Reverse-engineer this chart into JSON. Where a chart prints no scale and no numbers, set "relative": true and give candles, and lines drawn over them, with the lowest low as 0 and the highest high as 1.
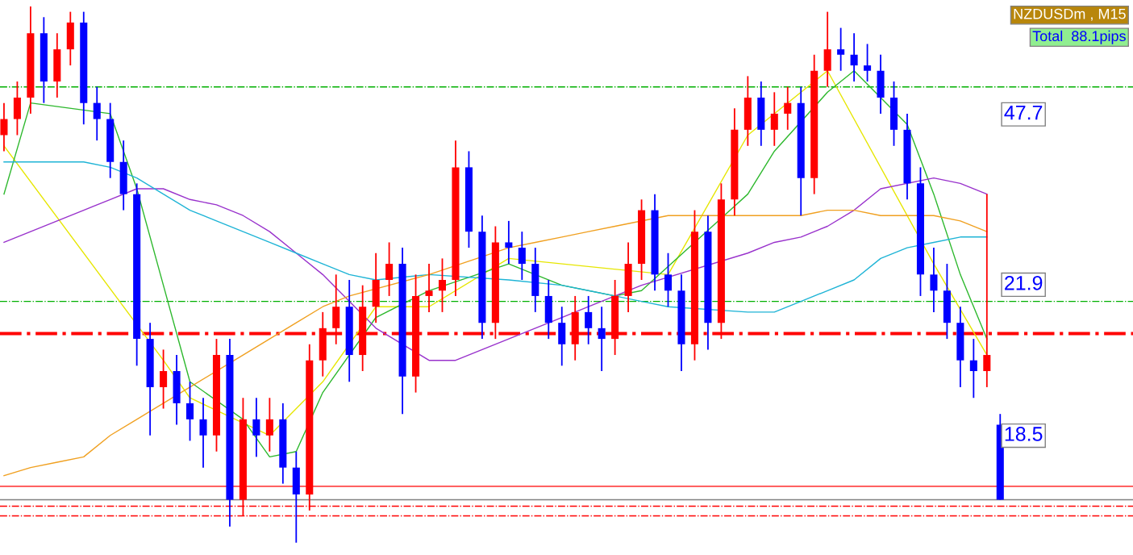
{
  "chart_data": {
    "type": "candlestick",
    "relative": true,
    "legend": false,
    "categories": [
      null,
      null,
      null,
      null,
      null,
      null,
      null,
      null,
      null,
      null,
      null,
      null,
      null,
      null,
      null,
      null,
      null,
      null,
      null,
      null,
      null,
      null,
      null,
      null,
      null,
      null,
      null,
      null,
      null,
      null,
      null,
      null,
      null,
      null,
      null,
      null,
      null,
      null,
      null,
      null,
      null,
      null,
      null,
      null,
      null,
      null,
      null,
      null,
      null,
      null,
      null,
      null,
      null,
      null,
      null,
      null,
      null,
      null,
      null,
      null,
      null,
      null,
      null,
      null,
      null,
      null,
      null,
      null,
      null,
      null,
      null,
      null,
      null,
      null,
      null,
      null
    ],
    "ohlc": [
      [
        0.76,
        0.82,
        0.73,
        0.79
      ],
      [
        0.79,
        0.86,
        0.76,
        0.83
      ],
      [
        0.83,
        1.0,
        0.8,
        0.95
      ],
      [
        0.95,
        0.98,
        0.82,
        0.86
      ],
      [
        0.86,
        0.95,
        0.83,
        0.92
      ],
      [
        0.92,
        0.99,
        0.89,
        0.97
      ],
      [
        0.97,
        0.99,
        0.78,
        0.82
      ],
      [
        0.82,
        0.85,
        0.75,
        0.79
      ],
      [
        0.79,
        0.82,
        0.68,
        0.71
      ],
      [
        0.71,
        0.75,
        0.62,
        0.65
      ],
      [
        0.65,
        0.67,
        0.33,
        0.38
      ],
      [
        0.38,
        0.41,
        0.2,
        0.29
      ],
      [
        0.29,
        0.36,
        0.25,
        0.32
      ],
      [
        0.32,
        0.35,
        0.22,
        0.26
      ],
      [
        0.26,
        0.3,
        0.19,
        0.23
      ],
      [
        0.23,
        0.27,
        0.14,
        0.2
      ],
      [
        0.2,
        0.38,
        0.17,
        0.35
      ],
      [
        0.35,
        0.38,
        0.03,
        0.08
      ],
      [
        0.08,
        0.27,
        0.05,
        0.23
      ],
      [
        0.23,
        0.27,
        0.16,
        0.2
      ],
      [
        0.2,
        0.27,
        0.17,
        0.23
      ],
      [
        0.23,
        0.26,
        0.11,
        0.14
      ],
      [
        0.14,
        0.17,
        0.0,
        0.09
      ],
      [
        0.09,
        0.37,
        0.06,
        0.34
      ],
      [
        0.34,
        0.43,
        0.31,
        0.4
      ],
      [
        0.4,
        0.5,
        0.37,
        0.44
      ],
      [
        0.44,
        0.49,
        0.3,
        0.35
      ],
      [
        0.35,
        0.48,
        0.32,
        0.44
      ],
      [
        0.44,
        0.54,
        0.41,
        0.49
      ],
      [
        0.49,
        0.56,
        0.46,
        0.52
      ],
      [
        0.52,
        0.55,
        0.24,
        0.31
      ],
      [
        0.31,
        0.5,
        0.28,
        0.46
      ],
      [
        0.46,
        0.52,
        0.43,
        0.47
      ],
      [
        0.47,
        0.53,
        0.43,
        0.49
      ],
      [
        0.49,
        0.75,
        0.46,
        0.7
      ],
      [
        0.7,
        0.73,
        0.55,
        0.58
      ],
      [
        0.58,
        0.61,
        0.38,
        0.41
      ],
      [
        0.41,
        0.59,
        0.38,
        0.56
      ],
      [
        0.56,
        0.6,
        0.52,
        0.55
      ],
      [
        0.55,
        0.58,
        0.49,
        0.52
      ],
      [
        0.52,
        0.55,
        0.43,
        0.46
      ],
      [
        0.46,
        0.49,
        0.38,
        0.41
      ],
      [
        0.41,
        0.44,
        0.33,
        0.37
      ],
      [
        0.37,
        0.46,
        0.34,
        0.43
      ],
      [
        0.43,
        0.46,
        0.37,
        0.4
      ],
      [
        0.4,
        0.44,
        0.32,
        0.38
      ],
      [
        0.38,
        0.49,
        0.35,
        0.46
      ],
      [
        0.46,
        0.56,
        0.43,
        0.52
      ],
      [
        0.52,
        0.64,
        0.49,
        0.62
      ],
      [
        0.62,
        0.65,
        0.47,
        0.5
      ],
      [
        0.5,
        0.54,
        0.44,
        0.47
      ],
      [
        0.47,
        0.5,
        0.32,
        0.37
      ],
      [
        0.37,
        0.62,
        0.34,
        0.58
      ],
      [
        0.58,
        0.61,
        0.36,
        0.41
      ],
      [
        0.41,
        0.67,
        0.38,
        0.64
      ],
      [
        0.64,
        0.81,
        0.61,
        0.77
      ],
      [
        0.77,
        0.87,
        0.74,
        0.83
      ],
      [
        0.83,
        0.86,
        0.74,
        0.77
      ],
      [
        0.77,
        0.84,
        0.74,
        0.8
      ],
      [
        0.8,
        0.85,
        0.77,
        0.82
      ],
      [
        0.82,
        0.85,
        0.61,
        0.68
      ],
      [
        0.68,
        0.91,
        0.65,
        0.88
      ],
      [
        0.88,
        0.99,
        0.85,
        0.92
      ],
      [
        0.92,
        0.96,
        0.88,
        0.91
      ],
      [
        0.91,
        0.95,
        0.86,
        0.89
      ],
      [
        0.89,
        0.93,
        0.86,
        0.88
      ],
      [
        0.88,
        0.91,
        0.8,
        0.83
      ],
      [
        0.83,
        0.86,
        0.74,
        0.77
      ],
      [
        0.77,
        0.8,
        0.64,
        0.67
      ],
      [
        0.67,
        0.7,
        0.46,
        0.5
      ],
      [
        0.5,
        0.55,
        0.43,
        0.47
      ],
      [
        0.47,
        0.52,
        0.38,
        0.41
      ],
      [
        0.41,
        0.44,
        0.29,
        0.34
      ],
      [
        0.34,
        0.38,
        0.27,
        0.32
      ],
      [
        0.32,
        0.65,
        0.29,
        0.35
      ],
      [
        0.22,
        0.24,
        0.08,
        0.08
      ]
    ],
    "colors": [
      "#ff0000",
      "#ff0000",
      "#ff0000",
      "#0000ff",
      "#ff0000",
      "#ff0000",
      "#0000ff",
      "#0000ff",
      "#0000ff",
      "#0000ff",
      "#0000ff",
      "#0000ff",
      "#ff0000",
      "#0000ff",
      "#0000ff",
      "#0000ff",
      "#ff0000",
      "#0000ff",
      "#ff0000",
      "#0000ff",
      "#ff0000",
      "#0000ff",
      "#0000ff",
      "#ff0000",
      "#ff0000",
      "#ff0000",
      "#0000ff",
      "#ff0000",
      "#ff0000",
      "#ff0000",
      "#0000ff",
      "#ff0000",
      "#ff0000",
      "#ff0000",
      "#ff0000",
      "#0000ff",
      "#0000ff",
      "#ff0000",
      "#0000ff",
      "#0000ff",
      "#0000ff",
      "#0000ff",
      "#0000ff",
      "#ff0000",
      "#0000ff",
      "#0000ff",
      "#ff0000",
      "#ff0000",
      "#ff0000",
      "#0000ff",
      "#0000ff",
      "#0000ff",
      "#ff0000",
      "#0000ff",
      "#ff0000",
      "#ff0000",
      "#ff0000",
      "#0000ff",
      "#ff0000",
      "#ff0000",
      "#0000ff",
      "#ff0000",
      "#ff0000",
      "#0000ff",
      "#0000ff",
      "#0000ff",
      "#0000ff",
      "#0000ff",
      "#0000ff",
      "#0000ff",
      "#0000ff",
      "#0000ff",
      "#0000ff",
      "#0000ff",
      "#ff0000",
      "#0000ff"
    ],
    "series": [
      {
        "type": "line",
        "color": "#e6e600",
        "values": [
          0.74,
          null,
          null,
          null,
          null,
          null,
          null,
          null,
          null,
          null,
          null,
          null,
          0.34,
          null,
          0.27,
          null,
          null,
          null,
          null,
          null,
          0.2,
          null,
          null,
          null,
          0.3,
          null,
          null,
          null,
          0.44,
          null,
          null,
          null,
          0.44,
          null,
          null,
          null,
          null,
          null,
          0.53,
          null,
          null,
          null,
          null,
          null,
          null,
          null,
          null,
          null,
          null,
          null,
          0.5,
          null,
          null,
          null,
          null,
          null,
          0.76,
          null,
          null,
          null,
          null,
          null,
          0.88,
          null,
          null,
          null,
          null,
          null,
          null,
          null,
          0.52,
          null,
          null,
          null,
          0.35,
          null
        ]
      },
      {
        "type": "line",
        "color": "#2db82d",
        "values": [
          0.65,
          null,
          0.82,
          null,
          null,
          null,
          null,
          null,
          0.8,
          null,
          0.66,
          null,
          0.48,
          null,
          0.3,
          null,
          null,
          null,
          0.23,
          null,
          0.16,
          null,
          0.17,
          null,
          0.28,
          null,
          null,
          null,
          0.42,
          null,
          null,
          null,
          0.47,
          null,
          null,
          null,
          null,
          null,
          0.52,
          null,
          null,
          null,
          0.48,
          null,
          null,
          null,
          0.46,
          null,
          0.47,
          null,
          null,
          null,
          null,
          null,
          null,
          null,
          0.65,
          null,
          0.73,
          null,
          null,
          null,
          0.84,
          null,
          0.88,
          null,
          null,
          null,
          0.78,
          null,
          0.65,
          null,
          0.5,
          null,
          0.38,
          null
        ]
      },
      {
        "type": "line",
        "color": "#9932cc",
        "values": [
          0.56,
          null,
          0.58,
          null,
          0.6,
          null,
          0.62,
          null,
          0.64,
          null,
          0.66,
          null,
          0.66,
          null,
          0.64,
          null,
          0.63,
          null,
          0.61,
          null,
          0.58,
          null,
          0.54,
          null,
          0.5,
          null,
          0.45,
          null,
          0.4,
          null,
          null,
          null,
          0.34,
          null,
          0.34,
          null,
          0.36,
          null,
          0.38,
          null,
          0.4,
          null,
          0.42,
          null,
          0.44,
          null,
          0.46,
          null,
          0.48,
          null,
          null,
          null,
          null,
          null,
          null,
          null,
          0.54,
          null,
          0.56,
          null,
          0.57,
          null,
          0.59,
          null,
          0.62,
          null,
          0.66,
          null,
          null,
          null,
          0.68,
          null,
          0.67,
          null,
          0.65,
          null
        ]
      },
      {
        "type": "line",
        "color": "#1fb4d6",
        "values": [
          0.71,
          null,
          0.71,
          null,
          0.71,
          null,
          0.71,
          null,
          0.7,
          null,
          0.68,
          null,
          0.65,
          null,
          0.62,
          null,
          0.6,
          null,
          0.58,
          null,
          0.56,
          null,
          0.54,
          null,
          0.52,
          null,
          0.5,
          null,
          0.49,
          null,
          null,
          null,
          0.5,
          null,
          null,
          null,
          null,
          null,
          0.49,
          null,
          null,
          null,
          0.48,
          null,
          0.47,
          null,
          0.46,
          null,
          0.45,
          null,
          0.44,
          null,
          null,
          null,
          null,
          null,
          0.43,
          null,
          0.43,
          null,
          0.45,
          null,
          0.47,
          null,
          0.49,
          null,
          0.53,
          null,
          0.55,
          null,
          0.56,
          null,
          0.57,
          null,
          0.57,
          null
        ]
      },
      {
        "type": "line",
        "color": "#f0a020",
        "values": [
          0.125,
          null,
          0.14,
          null,
          0.15,
          null,
          0.16,
          null,
          0.2,
          null,
          0.23,
          null,
          0.26,
          null,
          0.29,
          null,
          null,
          null,
          0.35,
          null,
          0.38,
          null,
          0.41,
          null,
          0.44,
          null,
          0.46,
          null,
          null,
          null,
          null,
          null,
          0.5,
          null,
          null,
          null,
          null,
          null,
          0.55,
          null,
          0.56,
          null,
          0.57,
          null,
          0.58,
          null,
          0.59,
          null,
          null,
          null,
          0.61,
          null,
          0.61,
          null,
          null,
          null,
          0.61,
          null,
          0.61,
          null,
          0.61,
          null,
          0.62,
          null,
          0.62,
          null,
          0.61,
          null,
          0.61,
          null,
          0.61,
          null,
          0.6,
          null,
          0.58,
          null
        ]
      }
    ],
    "ref_lines": [
      {
        "axis": "y",
        "value": 0.85,
        "color": "#00b000",
        "line_style": "dashdot"
      },
      {
        "axis": "y",
        "value": 0.45,
        "color": "#00b000",
        "line_style": "dashdot"
      },
      {
        "axis": "y",
        "value": 0.39,
        "color": "#ff0000",
        "line_style": "dashdot"
      },
      {
        "axis": "y",
        "value": 0.105,
        "color": "#ff0000",
        "line_style": "solid"
      },
      {
        "axis": "y",
        "value": 0.08,
        "color": "#808080",
        "line_style": "solid"
      },
      {
        "axis": "y",
        "value": 0.068,
        "color": "#ff0000",
        "line_style": "dashdot"
      },
      {
        "axis": "y",
        "value": 0.05,
        "color": "#ff0000",
        "line_style": "dashdot"
      }
    ],
    "annotations": [
      "NZDUSDm , M15",
      "Total  88.1pips",
      "47.7",
      "21.9",
      "18.5"
    ]
  }
}
